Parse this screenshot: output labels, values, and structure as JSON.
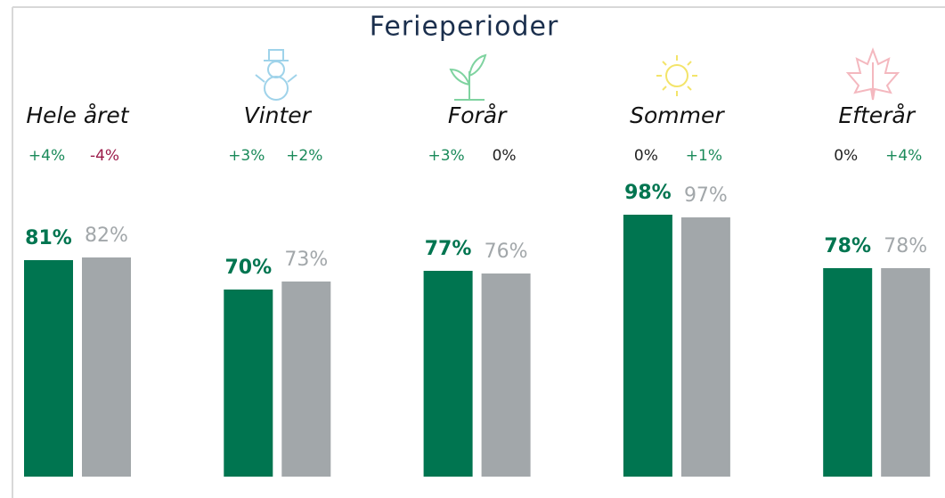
{
  "chart_data": {
    "type": "bar",
    "title": "Ferieperioder",
    "categories": [
      "Hele året",
      "Vinter",
      "Forår",
      "Sommer",
      "Efterår"
    ],
    "series": [
      {
        "color": "#007550",
        "values": [
          81,
          70,
          77,
          98,
          78
        ],
        "value_labels": [
          "81%",
          "70%",
          "77%",
          "98%",
          "78%"
        ],
        "change": {
          "values": [
            4,
            3,
            3,
            0,
            0
          ],
          "value_labels": [
            "+4%",
            "+3%",
            "+3%",
            "0%",
            "0%"
          ]
        }
      },
      {
        "color": "#a2a7aa",
        "values": [
          82,
          73,
          76,
          97,
          78
        ],
        "value_labels": [
          "82%",
          "73%",
          "76%",
          "97%",
          "78%"
        ],
        "change": {
          "values": [
            -4,
            2,
            0,
            1,
            4
          ],
          "value_labels": [
            "-4%",
            "+2%",
            "0%",
            "+1%",
            "+4%"
          ]
        }
      }
    ]
  }
}
